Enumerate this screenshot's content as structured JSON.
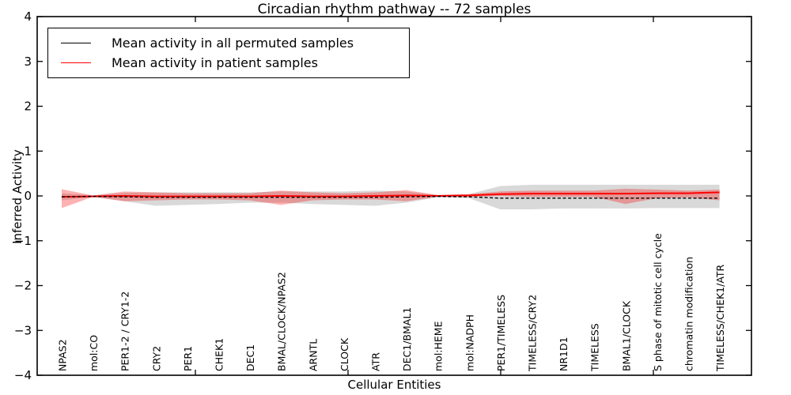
{
  "ui": {
    "title": "Circadian rhythm pathway -- 72 samples",
    "xlabel": "Cellular Entities",
    "ylabel": "Inferred Activity",
    "background": "#ffffff",
    "frame_color": "#000000"
  },
  "chart_data": {
    "type": "line",
    "title": "Circadian rhythm pathway -- 72 samples",
    "xlabel": "Cellular Entities",
    "ylabel": "Inferred Activity",
    "ylim": [
      -4,
      4
    ],
    "yticks": [
      -4,
      -3,
      -2,
      -1,
      0,
      1,
      2,
      3,
      4
    ],
    "grid": false,
    "legend_position": "upper left",
    "x_tick_labels_inside_plot": true,
    "categories": [
      "NPAS2",
      "mol:CO",
      "PER1-2 / CRY1-2",
      "CRY2",
      "PER1",
      "CHEK1",
      "DEC1",
      "BMAL/CLOCK/NPAS2",
      "ARNTL",
      "CLOCK",
      "ATR",
      "DEC1/BMAL1",
      "mol:HEME",
      "mol:NADPH",
      "PER1/TIMELESS",
      "TIMELESS/CRY2",
      "NR1D1",
      "TIMELESS",
      "BMAL1/CLOCK",
      "S phase of mitotic cell cycle",
      "chromatin modification",
      "TIMELESS/CHEK1/ATR"
    ],
    "series": [
      {
        "name": "Mean activity in all permuted samples",
        "color": "#000000",
        "line_style": "dashed",
        "values": [
          -0.02,
          -0.01,
          -0.02,
          -0.03,
          -0.03,
          -0.03,
          -0.03,
          -0.03,
          -0.03,
          -0.03,
          -0.03,
          -0.02,
          -0.01,
          -0.02,
          -0.05,
          -0.05,
          -0.05,
          -0.05,
          -0.05,
          -0.05,
          -0.05,
          -0.05
        ],
        "band_upper": [
          0.06,
          0.01,
          0.07,
          0.08,
          0.08,
          0.08,
          0.08,
          0.1,
          0.1,
          0.1,
          0.12,
          0.1,
          0.02,
          0.04,
          0.22,
          0.25,
          0.25,
          0.25,
          0.25,
          0.25,
          0.25,
          0.25
        ],
        "band_lower": [
          -0.1,
          -0.02,
          -0.12,
          -0.22,
          -0.2,
          -0.18,
          -0.15,
          -0.15,
          -0.18,
          -0.2,
          -0.22,
          -0.15,
          -0.03,
          -0.05,
          -0.3,
          -0.3,
          -0.28,
          -0.28,
          -0.28,
          -0.27,
          -0.27,
          -0.27
        ],
        "band_color": "#808080",
        "band_alpha": 0.3
      },
      {
        "name": "Mean activity in patient samples",
        "color": "#ff0000",
        "line_style": "solid",
        "values": [
          -0.02,
          -0.01,
          0.0,
          -0.01,
          -0.01,
          -0.01,
          -0.01,
          0.0,
          -0.01,
          -0.01,
          0.0,
          0.01,
          0.0,
          0.01,
          0.04,
          0.05,
          0.05,
          0.05,
          0.05,
          0.06,
          0.06,
          0.08
        ],
        "band_upper": [
          0.15,
          0.01,
          0.1,
          0.08,
          0.06,
          0.06,
          0.06,
          0.12,
          0.08,
          0.06,
          0.08,
          0.13,
          0.02,
          0.04,
          0.1,
          0.12,
          0.12,
          0.12,
          0.16,
          0.14,
          0.12,
          0.14
        ],
        "band_lower": [
          -0.27,
          -0.02,
          -0.12,
          -0.1,
          -0.08,
          -0.08,
          -0.1,
          -0.2,
          -0.1,
          -0.08,
          -0.08,
          -0.12,
          -0.02,
          -0.02,
          0.0,
          -0.02,
          -0.02,
          -0.02,
          -0.18,
          -0.05,
          -0.03,
          -0.1
        ],
        "band_color": "#ff0000",
        "band_alpha": 0.3
      }
    ]
  }
}
